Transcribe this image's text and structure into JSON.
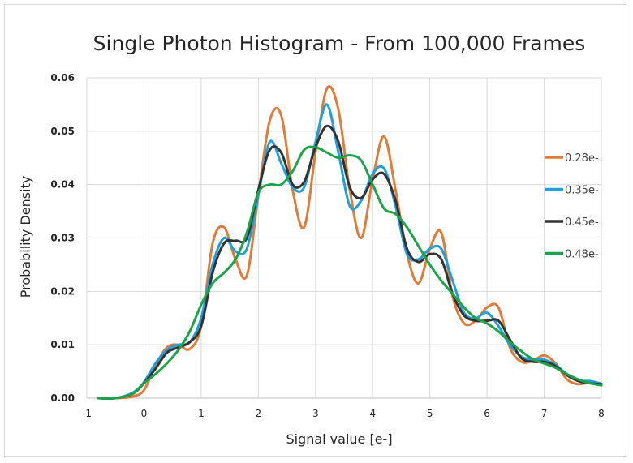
{
  "chart_data": {
    "type": "line",
    "title": "Single Photon Histogram - From 100,000 Frames",
    "xlabel": "Signal value [e-]",
    "ylabel": "Probability Density",
    "xlim": [
      -1,
      8
    ],
    "ylim": [
      0,
      0.06
    ],
    "xticks": [
      "-1",
      "0",
      "1",
      "2",
      "3",
      "4",
      "5",
      "6",
      "7",
      "8"
    ],
    "yticks": [
      "0.00",
      "0.01",
      "0.02",
      "0.03",
      "0.04",
      "0.05",
      "0.06"
    ],
    "grid": true,
    "legend_position": "right",
    "series": [
      {
        "name": "0.28e-",
        "color": "#e07b39",
        "x": [
          -0.8,
          -0.5,
          -0.2,
          0,
          0.2,
          0.4,
          0.6,
          0.8,
          1.0,
          1.2,
          1.4,
          1.6,
          1.8,
          2.0,
          2.2,
          2.4,
          2.6,
          2.8,
          3.0,
          3.2,
          3.4,
          3.6,
          3.8,
          4.0,
          4.2,
          4.4,
          4.6,
          4.8,
          5.0,
          5.2,
          5.4,
          5.6,
          5.8,
          6.0,
          6.2,
          6.4,
          6.6,
          6.8,
          7.0,
          7.2,
          7.4,
          7.6,
          7.8,
          8.0
        ],
        "y": [
          0,
          0,
          0.0003,
          0.0015,
          0.006,
          0.0095,
          0.01,
          0.0092,
          0.0135,
          0.029,
          0.032,
          0.026,
          0.023,
          0.038,
          0.052,
          0.053,
          0.039,
          0.032,
          0.046,
          0.058,
          0.054,
          0.039,
          0.03,
          0.041,
          0.049,
          0.039,
          0.027,
          0.0215,
          0.028,
          0.031,
          0.019,
          0.014,
          0.0145,
          0.017,
          0.017,
          0.0095,
          0.0068,
          0.007,
          0.008,
          0.0065,
          0.0035,
          0.0026,
          0.003,
          0.0025
        ]
      },
      {
        "name": "0.35e-",
        "color": "#1fa0db",
        "x": [
          -0.8,
          -0.5,
          -0.2,
          0,
          0.2,
          0.4,
          0.6,
          0.8,
          1.0,
          1.2,
          1.4,
          1.6,
          1.8,
          2.0,
          2.2,
          2.4,
          2.6,
          2.8,
          3.0,
          3.2,
          3.4,
          3.6,
          3.8,
          4.0,
          4.2,
          4.4,
          4.6,
          4.8,
          5.0,
          5.2,
          5.4,
          5.6,
          5.8,
          6.0,
          6.2,
          6.4,
          6.6,
          6.8,
          7.0,
          7.2,
          7.4,
          7.6,
          7.8,
          8.0
        ],
        "y": [
          0,
          0,
          0.001,
          0.003,
          0.0065,
          0.009,
          0.01,
          0.0105,
          0.015,
          0.025,
          0.03,
          0.0275,
          0.028,
          0.038,
          0.048,
          0.044,
          0.0395,
          0.0395,
          0.048,
          0.055,
          0.046,
          0.036,
          0.037,
          0.042,
          0.043,
          0.036,
          0.027,
          0.026,
          0.028,
          0.028,
          0.022,
          0.016,
          0.015,
          0.016,
          0.0135,
          0.01,
          0.0078,
          0.0072,
          0.0072,
          0.0062,
          0.0045,
          0.0033,
          0.0032,
          0.0027
        ]
      },
      {
        "name": "0.45e-",
        "color": "#333333",
        "x": [
          -0.8,
          -0.5,
          -0.2,
          0,
          0.2,
          0.4,
          0.6,
          0.8,
          1.0,
          1.2,
          1.4,
          1.6,
          1.8,
          2.0,
          2.2,
          2.4,
          2.6,
          2.8,
          3.0,
          3.2,
          3.4,
          3.6,
          3.8,
          4.0,
          4.2,
          4.4,
          4.6,
          4.8,
          5.0,
          5.2,
          5.4,
          5.6,
          5.8,
          6.0,
          6.2,
          6.4,
          6.6,
          6.8,
          7.0,
          7.2,
          7.4,
          7.6,
          7.8,
          8.0
        ],
        "y": [
          0,
          0,
          0.0008,
          0.0028,
          0.0055,
          0.0085,
          0.0095,
          0.0105,
          0.0135,
          0.0235,
          0.029,
          0.0295,
          0.03,
          0.039,
          0.0465,
          0.046,
          0.04,
          0.0405,
          0.047,
          0.051,
          0.048,
          0.0395,
          0.0375,
          0.041,
          0.042,
          0.037,
          0.028,
          0.0255,
          0.027,
          0.026,
          0.0195,
          0.0155,
          0.0145,
          0.0145,
          0.0145,
          0.011,
          0.0075,
          0.0068,
          0.0068,
          0.006,
          0.0043,
          0.0032,
          0.0028,
          0.0026
        ]
      },
      {
        "name": "0.48e-",
        "color": "#1fa34a",
        "x": [
          -0.8,
          -0.5,
          -0.2,
          0,
          0.2,
          0.4,
          0.6,
          0.8,
          1.0,
          1.2,
          1.4,
          1.6,
          1.8,
          2.0,
          2.2,
          2.4,
          2.6,
          2.8,
          3.0,
          3.2,
          3.4,
          3.6,
          3.8,
          4.0,
          4.2,
          4.4,
          4.6,
          4.8,
          5.0,
          5.2,
          5.4,
          5.6,
          5.8,
          6.0,
          6.2,
          6.4,
          6.6,
          6.8,
          7.0,
          7.2,
          7.4,
          7.6,
          7.8,
          8.0
        ],
        "y": [
          0,
          0,
          0.0008,
          0.0028,
          0.0045,
          0.0065,
          0.009,
          0.0125,
          0.0175,
          0.0215,
          0.0235,
          0.026,
          0.031,
          0.0385,
          0.04,
          0.04,
          0.0425,
          0.0465,
          0.047,
          0.046,
          0.045,
          0.0455,
          0.0445,
          0.04,
          0.0355,
          0.0345,
          0.032,
          0.0285,
          0.025,
          0.022,
          0.0195,
          0.017,
          0.015,
          0.014,
          0.0125,
          0.0105,
          0.0088,
          0.0073,
          0.0065,
          0.0057,
          0.0045,
          0.0035,
          0.0028,
          0.0024
        ]
      }
    ]
  }
}
